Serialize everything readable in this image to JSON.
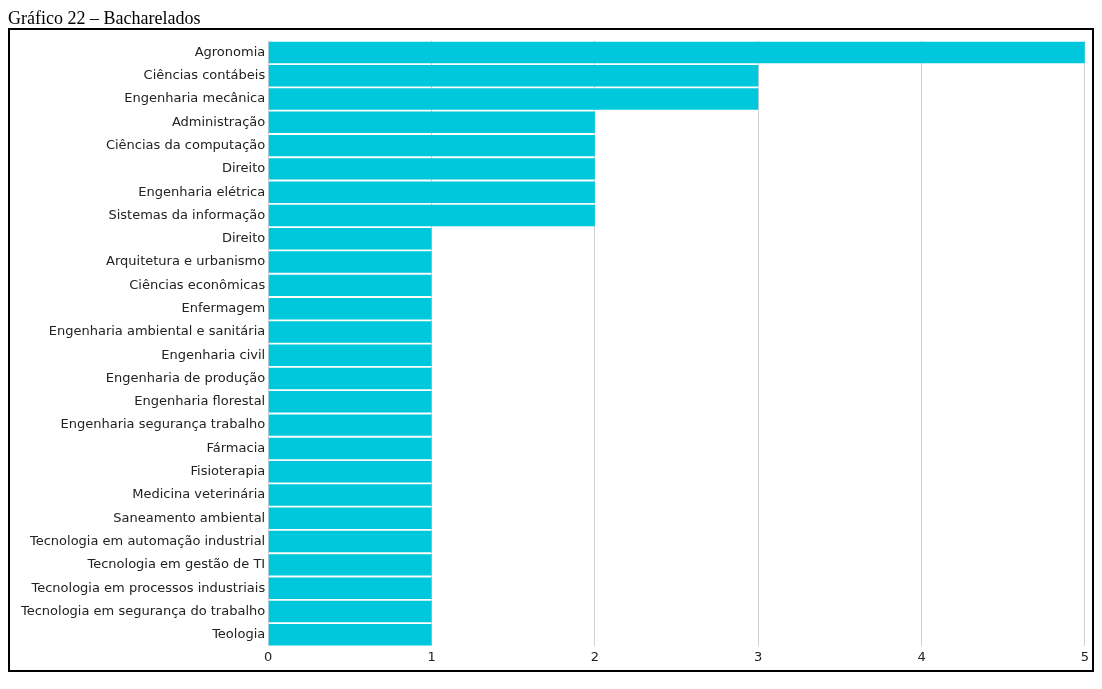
{
  "chart_data": {
    "type": "bar",
    "title": "Gráfico 22 – Bacharelados",
    "orientation": "horizontal",
    "categories": [
      "Agronomia",
      "Ciências contábeis",
      "Engenharia mecânica",
      "Administração",
      "Ciências da computação",
      "Direito",
      "Engenharia elétrica",
      "Sistemas da informação",
      "Direito",
      "Arquitetura e urbanismo",
      "Ciências econômicas",
      "Enfermagem",
      "Engenharia ambiental e sanitária",
      "Engenharia civil",
      "Engenharia de produção",
      "Engenharia florestal",
      "Engenharia segurança trabalho",
      "Fármacia",
      "Fisioterapia",
      "Medicina veterinária",
      "Saneamento ambiental",
      "Tecnologia em automação industrial",
      "Tecnologia em gestão de TI",
      "Tecnologia em processos industriais",
      "Tecnologia em segurança do trabalho",
      "Teologia"
    ],
    "values": [
      5,
      3,
      3,
      2,
      2,
      2,
      2,
      2,
      1,
      1,
      1,
      1,
      1,
      1,
      1,
      1,
      1,
      1,
      1,
      1,
      1,
      1,
      1,
      1,
      1,
      1
    ],
    "color": "#00c8dc",
    "xlim": [
      0,
      5
    ],
    "xticks": [
      0,
      1,
      2,
      3,
      4,
      5
    ],
    "grid": "x",
    "legend": false
  }
}
